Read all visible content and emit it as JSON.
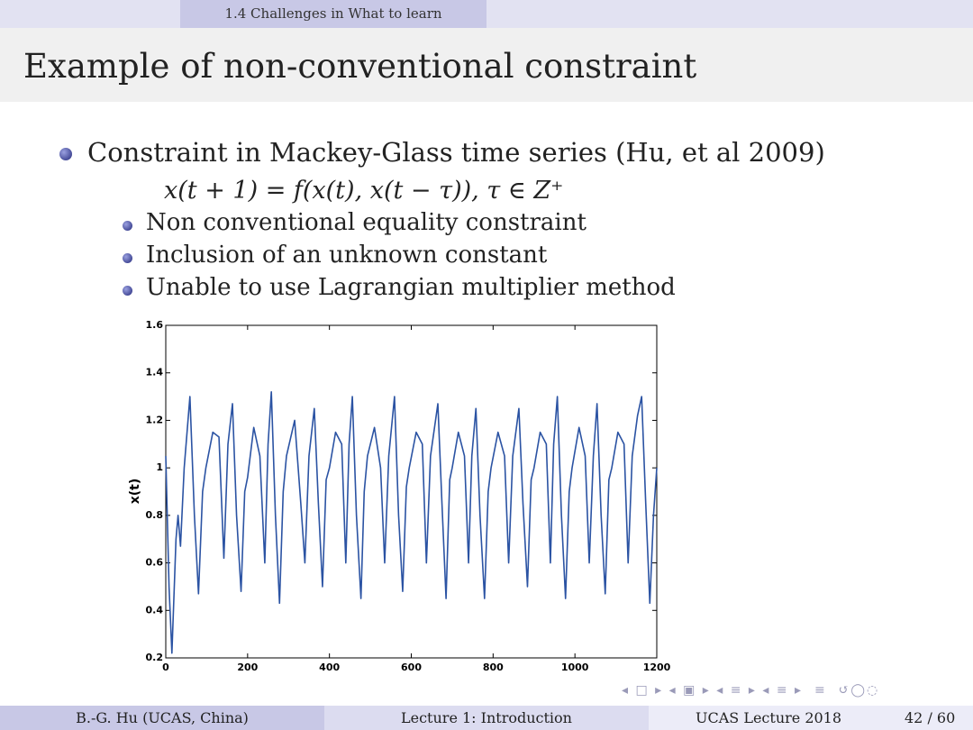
{
  "header": {
    "section": "1.4 Challenges in What to learn"
  },
  "slide": {
    "title": "Example of non-conventional constraint",
    "bullet": "Constraint in Mackey-Glass time series (Hu, et al 2009)",
    "equation": "x(t + 1) = f(x(t), x(t − τ)),  τ ∈ Z⁺",
    "sub_bullets": [
      "Non conventional equality constraint",
      "Inclusion of an unknown constant",
      "Unable to use Lagrangian multiplier method"
    ]
  },
  "footer": {
    "author": "B.-G. Hu  (UCAS, China)",
    "lecture": "Lecture 1: Introduction",
    "venue": "UCAS Lecture 2018",
    "page": "42 / 60"
  },
  "chart_data": {
    "type": "line",
    "ylabel": "x(t)",
    "x": [
      0,
      8,
      15,
      25,
      30,
      36,
      45,
      59,
      70,
      80,
      90,
      98,
      115,
      130,
      142,
      152,
      163,
      173,
      184,
      193,
      200,
      215,
      230,
      242,
      250,
      258,
      268,
      278,
      287,
      295,
      315,
      330,
      340,
      350,
      363,
      373,
      383,
      392,
      400,
      415,
      430,
      440,
      448,
      456,
      466,
      477,
      485,
      493,
      510,
      525,
      535,
      545,
      559,
      569,
      579,
      588,
      595,
      612,
      627,
      637,
      647,
      665,
      675,
      685,
      694,
      700,
      715,
      730,
      740,
      748,
      758,
      768,
      779,
      788,
      795,
      812,
      828,
      838,
      848,
      863,
      873,
      884,
      893,
      900,
      915,
      930,
      940,
      948,
      957,
      967,
      977,
      986,
      993,
      1010,
      1025,
      1035,
      1045,
      1054,
      1064,
      1074,
      1083,
      1090,
      1105,
      1120,
      1130,
      1140,
      1153,
      1163,
      1173,
      1183,
      1192,
      1200
    ],
    "series": [
      {
        "color": "#2b53a3",
        "values": [
          1.05,
          0.5,
          0.22,
          0.7,
          0.8,
          0.67,
          1.0,
          1.3,
          0.8,
          0.47,
          0.9,
          1.0,
          1.15,
          1.13,
          0.62,
          1.1,
          1.27,
          0.8,
          0.48,
          0.9,
          0.96,
          1.17,
          1.05,
          0.6,
          1.1,
          1.32,
          0.8,
          0.43,
          0.9,
          1.05,
          1.2,
          0.85,
          0.6,
          1.05,
          1.25,
          0.85,
          0.5,
          0.95,
          1.0,
          1.15,
          1.1,
          0.6,
          1.1,
          1.3,
          0.8,
          0.45,
          0.9,
          1.05,
          1.17,
          1.0,
          0.6,
          1.05,
          1.3,
          0.8,
          0.48,
          0.92,
          1.0,
          1.15,
          1.1,
          0.6,
          1.05,
          1.27,
          0.85,
          0.45,
          0.95,
          1.0,
          1.15,
          1.05,
          0.6,
          1.05,
          1.25,
          0.8,
          0.45,
          0.9,
          1.0,
          1.15,
          1.05,
          0.6,
          1.05,
          1.25,
          0.85,
          0.5,
          0.95,
          1.0,
          1.15,
          1.1,
          0.6,
          1.1,
          1.3,
          0.8,
          0.45,
          0.9,
          1.0,
          1.17,
          1.05,
          0.6,
          1.05,
          1.27,
          0.8,
          0.47,
          0.95,
          1.0,
          1.15,
          1.1,
          0.6,
          1.05,
          1.22,
          1.3,
          0.85,
          0.43,
          0.8,
          1.0
        ]
      }
    ],
    "xlim": [
      0,
      1200
    ],
    "ylim": [
      0.2,
      1.6
    ],
    "xticks": [
      0,
      200,
      400,
      600,
      800,
      1000,
      1200
    ],
    "yticks": [
      0.2,
      0.4,
      0.6,
      0.8,
      1,
      1.2,
      1.4,
      1.6
    ]
  }
}
